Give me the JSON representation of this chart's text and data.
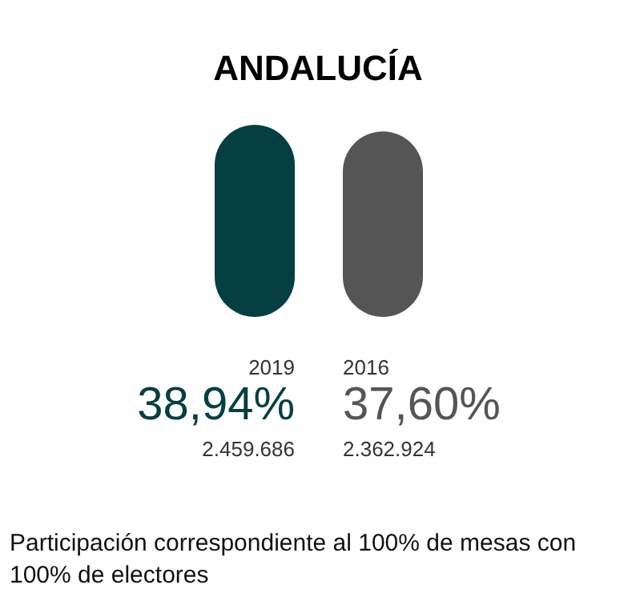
{
  "chart_data": {
    "type": "bar",
    "title": "ANDALUCÍA",
    "categories": [
      "2019",
      "2016"
    ],
    "values": [
      38.94,
      37.6
    ],
    "value_labels": [
      "38,94%",
      "37,60%"
    ],
    "colors": [
      "#063f42",
      "#555555"
    ],
    "annotations": [
      "2.459.686",
      "2.362.924",
      "Participación correspondiente al 100% de mesas con 100% de electores"
    ]
  }
}
